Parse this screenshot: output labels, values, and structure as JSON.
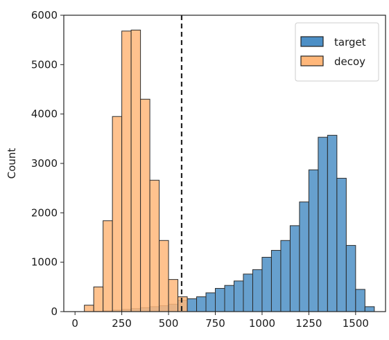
{
  "chart_data": {
    "type": "histogram",
    "ylabel": "Count",
    "xlabel": "",
    "xlim": [
      -60,
      1660
    ],
    "ylim": [
      0,
      6000
    ],
    "x_ticks": [
      0,
      250,
      500,
      750,
      1000,
      1250,
      1500
    ],
    "y_ticks": [
      0,
      1000,
      2000,
      3000,
      4000,
      5000,
      6000
    ],
    "bin_width": 50,
    "threshold_line": 570,
    "legend": {
      "position": "top-right",
      "entries": [
        "target",
        "decoy"
      ]
    },
    "series": [
      {
        "name": "target",
        "color": "#4c8fc6",
        "bins": [
          {
            "x0": 100,
            "x1": 150,
            "count": 5
          },
          {
            "x0": 150,
            "x1": 200,
            "count": 15
          },
          {
            "x0": 200,
            "x1": 250,
            "count": 30
          },
          {
            "x0": 250,
            "x1": 300,
            "count": 45
          },
          {
            "x0": 300,
            "x1": 350,
            "count": 60
          },
          {
            "x0": 350,
            "x1": 400,
            "count": 80
          },
          {
            "x0": 400,
            "x1": 450,
            "count": 100
          },
          {
            "x0": 450,
            "x1": 500,
            "count": 120
          },
          {
            "x0": 500,
            "x1": 550,
            "count": 150
          },
          {
            "x0": 550,
            "x1": 600,
            "count": 230
          },
          {
            "x0": 600,
            "x1": 650,
            "count": 260
          },
          {
            "x0": 650,
            "x1": 700,
            "count": 300
          },
          {
            "x0": 700,
            "x1": 750,
            "count": 380
          },
          {
            "x0": 750,
            "x1": 800,
            "count": 470
          },
          {
            "x0": 800,
            "x1": 850,
            "count": 530
          },
          {
            "x0": 850,
            "x1": 900,
            "count": 620
          },
          {
            "x0": 900,
            "x1": 950,
            "count": 760
          },
          {
            "x0": 950,
            "x1": 1000,
            "count": 850
          },
          {
            "x0": 1000,
            "x1": 1050,
            "count": 1100
          },
          {
            "x0": 1050,
            "x1": 1100,
            "count": 1240
          },
          {
            "x0": 1100,
            "x1": 1150,
            "count": 1440
          },
          {
            "x0": 1150,
            "x1": 1200,
            "count": 1740
          },
          {
            "x0": 1200,
            "x1": 1250,
            "count": 2220
          },
          {
            "x0": 1250,
            "x1": 1300,
            "count": 2870
          },
          {
            "x0": 1300,
            "x1": 1350,
            "count": 3530
          },
          {
            "x0": 1350,
            "x1": 1400,
            "count": 3570
          },
          {
            "x0": 1400,
            "x1": 1450,
            "count": 2700
          },
          {
            "x0": 1450,
            "x1": 1500,
            "count": 1340
          },
          {
            "x0": 1500,
            "x1": 1550,
            "count": 450
          },
          {
            "x0": 1550,
            "x1": 1600,
            "count": 100
          }
        ]
      },
      {
        "name": "decoy",
        "color": "#ffb77a",
        "bins": [
          {
            "x0": 50,
            "x1": 100,
            "count": 130
          },
          {
            "x0": 100,
            "x1": 150,
            "count": 500
          },
          {
            "x0": 150,
            "x1": 200,
            "count": 1840
          },
          {
            "x0": 200,
            "x1": 250,
            "count": 3950
          },
          {
            "x0": 250,
            "x1": 300,
            "count": 5680
          },
          {
            "x0": 300,
            "x1": 350,
            "count": 5700
          },
          {
            "x0": 350,
            "x1": 400,
            "count": 4300
          },
          {
            "x0": 400,
            "x1": 450,
            "count": 2660
          },
          {
            "x0": 450,
            "x1": 500,
            "count": 1440
          },
          {
            "x0": 500,
            "x1": 550,
            "count": 650
          },
          {
            "x0": 550,
            "x1": 600,
            "count": 300
          }
        ]
      }
    ]
  }
}
